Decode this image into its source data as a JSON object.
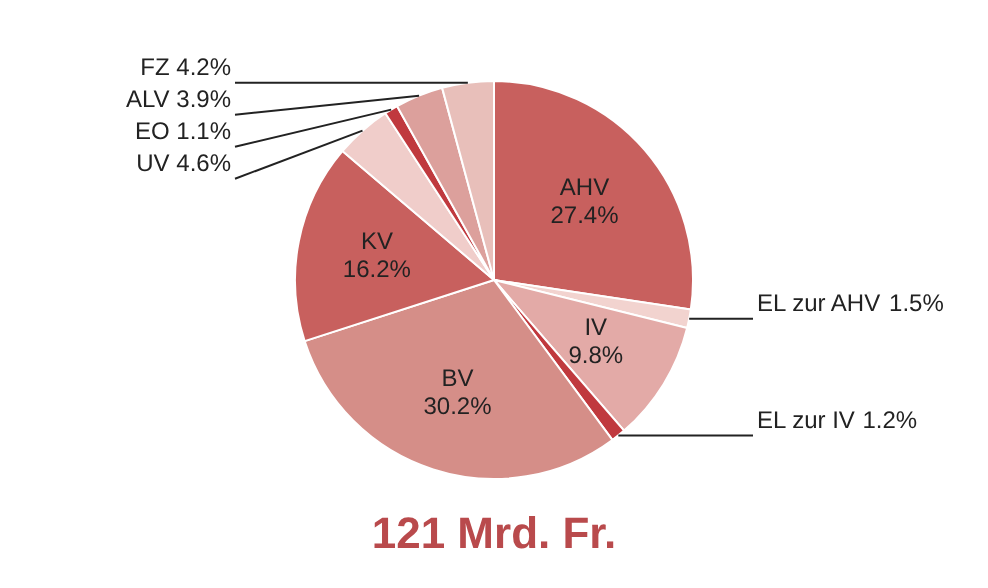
{
  "chart_data": {
    "type": "pie",
    "categories": [
      "AHV",
      "EL zur AHV",
      "IV",
      "EL zur IV",
      "BV",
      "KV",
      "UV",
      "EO",
      "ALV",
      "FZ"
    ],
    "values": [
      27.4,
      1.5,
      9.8,
      1.2,
      30.2,
      16.2,
      4.6,
      1.1,
      3.9,
      4.2
    ],
    "colors": [
      "#c8605e",
      "#f2d3cf",
      "#e3aaa7",
      "#c0393e",
      "#d58e88",
      "#c8605e",
      "#f0cdca",
      "#c0393e",
      "#dca09c",
      "#e8bfba"
    ],
    "value_labels": [
      "27.4%",
      "1.5%",
      "9.8%",
      "1.2%",
      "30.2%",
      "16.2%",
      "4.6%",
      "1.1%",
      "3.9%",
      "4.2%"
    ],
    "legend": false,
    "annotations": [
      "121 Mrd. Fr."
    ]
  }
}
